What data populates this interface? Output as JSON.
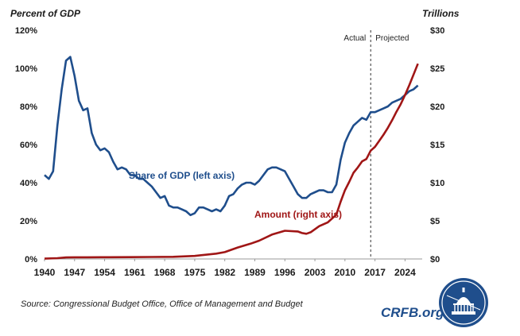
{
  "chart_data": {
    "type": "line",
    "left_axis_title": "Percent of GDP",
    "right_axis_title": "Trillions",
    "left_ticks": [
      "0%",
      "20%",
      "40%",
      "60%",
      "80%",
      "100%",
      "120%"
    ],
    "right_ticks": [
      "$0",
      "$5",
      "$10",
      "$15",
      "$20",
      "$25",
      "$30"
    ],
    "x_ticks": [
      "1940",
      "1947",
      "1954",
      "1961",
      "1968",
      "1975",
      "1982",
      "1989",
      "1996",
      "2003",
      "2010",
      "2017",
      "2024"
    ],
    "x_range": [
      1940,
      2028
    ],
    "left_range": [
      0,
      120
    ],
    "right_range": [
      0,
      30
    ],
    "divider_year": 2016,
    "region_labels": {
      "actual": "Actual",
      "projected": "Projected"
    },
    "series": [
      {
        "name": "Share of GDP (left axis)",
        "axis": "left",
        "color": "#1f4e8c",
        "x": [
          1940,
          1941,
          1942,
          1943,
          1944,
          1945,
          1946,
          1947,
          1948,
          1949,
          1950,
          1951,
          1952,
          1953,
          1954,
          1955,
          1956,
          1957,
          1958,
          1959,
          1960,
          1961,
          1962,
          1963,
          1964,
          1965,
          1966,
          1967,
          1968,
          1969,
          1970,
          1971,
          1972,
          1973,
          1974,
          1975,
          1976,
          1977,
          1978,
          1979,
          1980,
          1981,
          1982,
          1983,
          1984,
          1985,
          1986,
          1987,
          1988,
          1989,
          1990,
          1991,
          1992,
          1993,
          1994,
          1995,
          1996,
          1997,
          1998,
          1999,
          2000,
          2001,
          2002,
          2003,
          2004,
          2005,
          2006,
          2007,
          2008,
          2009,
          2010,
          2011,
          2012,
          2013,
          2014,
          2015,
          2016,
          2017,
          2018,
          2019,
          2020,
          2021,
          2022,
          2023,
          2024,
          2025,
          2026,
          2027
        ],
        "values": [
          44,
          42,
          46,
          70,
          89,
          104,
          106,
          96,
          83,
          78,
          79,
          66,
          60,
          57,
          58,
          56,
          51,
          47,
          48,
          47,
          44,
          44,
          42,
          42,
          40,
          38,
          35,
          32,
          33,
          28,
          27,
          27,
          26,
          25,
          23,
          24,
          27,
          27,
          26,
          25,
          26,
          25,
          28,
          33,
          34,
          37,
          39,
          40,
          40,
          39,
          41,
          44,
          47,
          48,
          48,
          47,
          46,
          42,
          38,
          34,
          32,
          32,
          34,
          35,
          36,
          36,
          35,
          35,
          39,
          52,
          61,
          66,
          70,
          72,
          74,
          73,
          77,
          77,
          78,
          79,
          80,
          82,
          83,
          84,
          86,
          88,
          89,
          91
        ]
      },
      {
        "name": "Amount (right axis)",
        "axis": "right",
        "color": "#a01616",
        "x": [
          1940,
          1943,
          1945,
          1947,
          1950,
          1955,
          1960,
          1965,
          1970,
          1975,
          1980,
          1982,
          1985,
          1988,
          1990,
          1993,
          1996,
          1999,
          2000,
          2001,
          2002,
          2004,
          2006,
          2008,
          2009,
          2010,
          2011,
          2012,
          2013,
          2014,
          2015,
          2016,
          2017,
          2018,
          2019,
          2020,
          2021,
          2022,
          2023,
          2024,
          2025,
          2026,
          2027
        ],
        "values": [
          0.04,
          0.1,
          0.2,
          0.22,
          0.22,
          0.23,
          0.24,
          0.26,
          0.28,
          0.4,
          0.7,
          0.9,
          1.5,
          2.0,
          2.4,
          3.2,
          3.7,
          3.6,
          3.4,
          3.3,
          3.5,
          4.3,
          4.8,
          5.8,
          7.5,
          9.0,
          10.1,
          11.3,
          12.0,
          12.8,
          13.1,
          14.2,
          14.7,
          15.5,
          16.3,
          17.2,
          18.2,
          19.3,
          20.3,
          21.5,
          22.8,
          24.2,
          25.6
        ]
      }
    ],
    "annotations": {
      "share_label": "Share of GDP (left axis)",
      "amount_label": "Amount (right axis)"
    }
  },
  "footer": {
    "source": "Source: Congressional Budget Office, Office of Management and Budget",
    "brand": "CRFB.org"
  }
}
